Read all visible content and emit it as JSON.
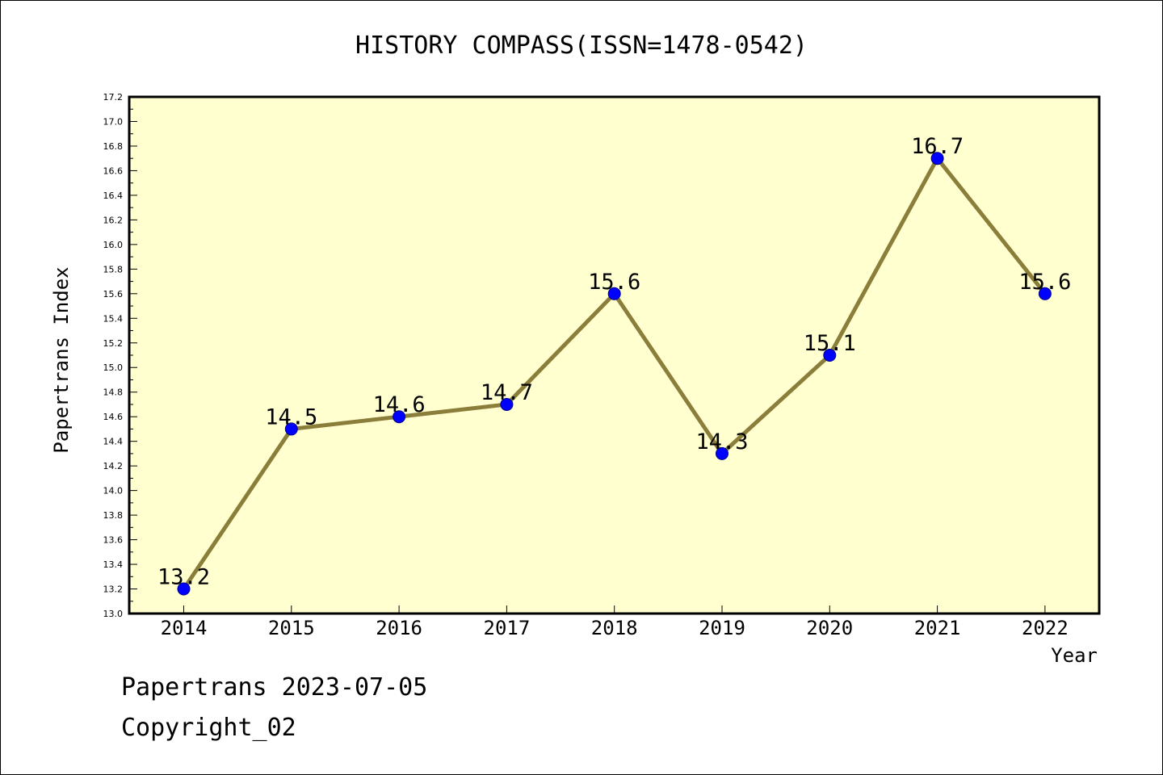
{
  "chart_data": {
    "type": "line",
    "title": "HISTORY COMPASS(ISSN=1478-0542)",
    "xlabel": "Year",
    "ylabel": "Papertrans Index",
    "categories": [
      "2014",
      "2015",
      "2016",
      "2017",
      "2018",
      "2019",
      "2020",
      "2021",
      "2022"
    ],
    "series": [
      {
        "values": [
          13.2,
          14.5,
          14.6,
          14.7,
          15.6,
          14.3,
          15.1,
          16.7,
          15.6
        ]
      }
    ],
    "data_labels": [
      "13.2",
      "14.5",
      "14.6",
      "14.7",
      "15.6",
      "14.3",
      "15.1",
      "16.7",
      "15.6"
    ],
    "ylim": [
      13.0,
      17.2
    ],
    "yticks": [
      "13.0",
      "13.2",
      "13.4",
      "13.6",
      "13.8",
      "14.0",
      "14.2",
      "14.4",
      "14.6",
      "14.8",
      "15.0",
      "15.2",
      "15.4",
      "15.6",
      "15.8",
      "16.0",
      "16.2",
      "16.4",
      "16.6",
      "16.8",
      "17.0",
      "17.2"
    ],
    "grid": false,
    "legend": "none",
    "colors": {
      "plot_background": "#ffffd0",
      "line": "#8b7d3a",
      "marker": "#0000ff",
      "axis": "#000000"
    }
  },
  "footer": {
    "date_line": "Papertrans 2023-07-05",
    "copyright_line": "Copyright_02"
  }
}
